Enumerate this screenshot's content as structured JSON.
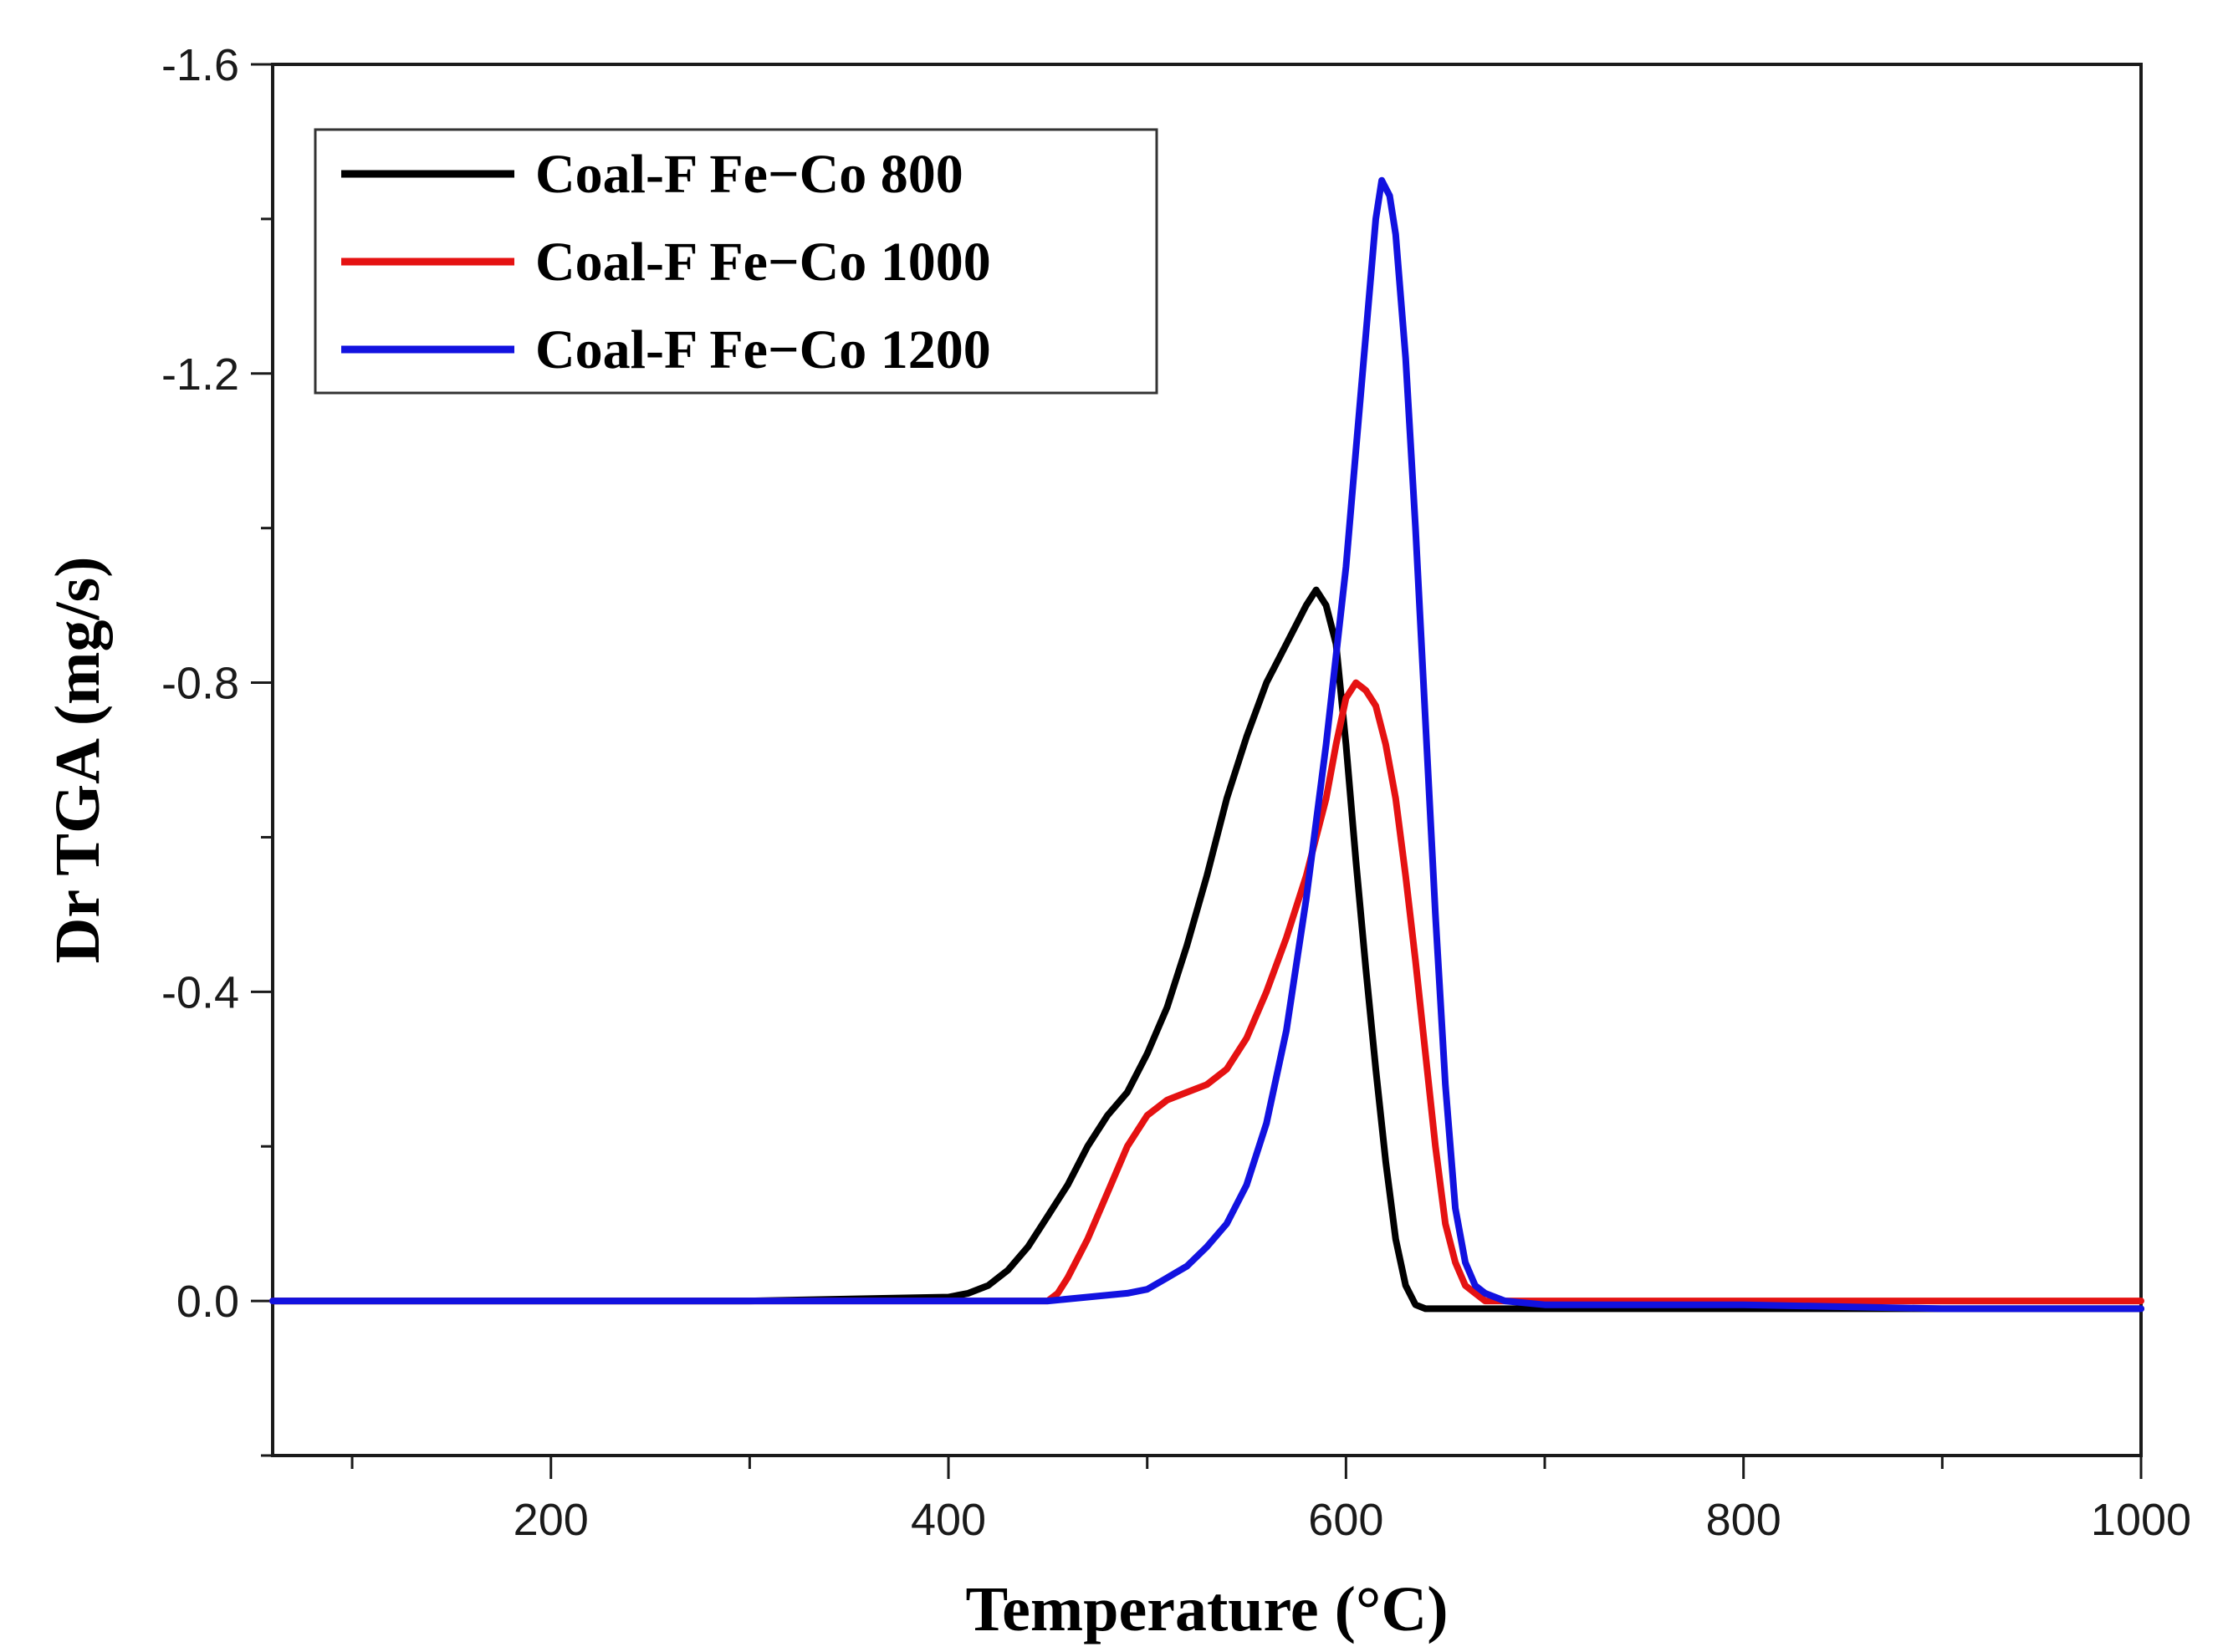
{
  "chart_data": {
    "type": "line",
    "title": "",
    "xlabel": "Temperature (°C)",
    "ylabel": "Dr TGA (mg/s)",
    "xlim": [
      60,
      1000
    ],
    "ylim": [
      0.2,
      -1.6
    ],
    "y_inverted": true,
    "xticks": [
      200,
      400,
      600,
      800,
      1000
    ],
    "xtick_labels": [
      "200",
      "400",
      "600",
      "800",
      "1000"
    ],
    "yticks": [
      0.0,
      -0.4,
      -0.8,
      -1.2,
      -1.6
    ],
    "ytick_labels": [
      "0.0",
      "-0.4",
      "-0.8",
      "-1.2",
      "-1.6"
    ],
    "grid": false,
    "legend_position": "top-left",
    "series": [
      {
        "name": "Coal-F Fe−Co 800",
        "color": "#000000",
        "points": [
          [
            60,
            0
          ],
          [
            100,
            0
          ],
          [
            200,
            0
          ],
          [
            300,
            0
          ],
          [
            400,
            -0.005
          ],
          [
            410,
            -0.01
          ],
          [
            420,
            -0.02
          ],
          [
            430,
            -0.04
          ],
          [
            440,
            -0.07
          ],
          [
            450,
            -0.11
          ],
          [
            460,
            -0.15
          ],
          [
            470,
            -0.2
          ],
          [
            480,
            -0.24
          ],
          [
            490,
            -0.27
          ],
          [
            500,
            -0.32
          ],
          [
            510,
            -0.38
          ],
          [
            520,
            -0.46
          ],
          [
            530,
            -0.55
          ],
          [
            540,
            -0.65
          ],
          [
            550,
            -0.73
          ],
          [
            560,
            -0.8
          ],
          [
            570,
            -0.85
          ],
          [
            580,
            -0.9
          ],
          [
            585,
            -0.92
          ],
          [
            590,
            -0.9
          ],
          [
            595,
            -0.85
          ],
          [
            600,
            -0.72
          ],
          [
            605,
            -0.57
          ],
          [
            610,
            -0.43
          ],
          [
            615,
            -0.3
          ],
          [
            620,
            -0.18
          ],
          [
            625,
            -0.08
          ],
          [
            630,
            -0.02
          ],
          [
            635,
            0.005
          ],
          [
            640,
            0.01
          ],
          [
            650,
            0.01
          ],
          [
            700,
            0.01
          ],
          [
            800,
            0.01
          ],
          [
            900,
            0.01
          ],
          [
            1000,
            0.01
          ]
        ]
      },
      {
        "name": "Coal-F Fe−Co 1000",
        "color": "#e51212",
        "points": [
          [
            60,
            0
          ],
          [
            100,
            0
          ],
          [
            200,
            0
          ],
          [
            300,
            0
          ],
          [
            400,
            0
          ],
          [
            450,
            0
          ],
          [
            455,
            -0.01
          ],
          [
            460,
            -0.03
          ],
          [
            470,
            -0.08
          ],
          [
            480,
            -0.14
          ],
          [
            490,
            -0.2
          ],
          [
            500,
            -0.24
          ],
          [
            510,
            -0.26
          ],
          [
            520,
            -0.27
          ],
          [
            530,
            -0.28
          ],
          [
            540,
            -0.3
          ],
          [
            550,
            -0.34
          ],
          [
            560,
            -0.4
          ],
          [
            570,
            -0.47
          ],
          [
            580,
            -0.55
          ],
          [
            590,
            -0.65
          ],
          [
            595,
            -0.72
          ],
          [
            600,
            -0.78
          ],
          [
            605,
            -0.8
          ],
          [
            610,
            -0.79
          ],
          [
            615,
            -0.77
          ],
          [
            620,
            -0.72
          ],
          [
            625,
            -0.65
          ],
          [
            630,
            -0.55
          ],
          [
            635,
            -0.44
          ],
          [
            640,
            -0.32
          ],
          [
            645,
            -0.2
          ],
          [
            650,
            -0.1
          ],
          [
            655,
            -0.05
          ],
          [
            660,
            -0.02
          ],
          [
            665,
            -0.01
          ],
          [
            670,
            0
          ],
          [
            700,
            0
          ],
          [
            800,
            0
          ],
          [
            900,
            0
          ],
          [
            1000,
            0
          ]
        ]
      },
      {
        "name": "Coal-F Fe−Co 1200",
        "color": "#1212e0",
        "points": [
          [
            60,
            0
          ],
          [
            100,
            0
          ],
          [
            200,
            0
          ],
          [
            300,
            0
          ],
          [
            400,
            0
          ],
          [
            450,
            0
          ],
          [
            470,
            -0.005
          ],
          [
            490,
            -0.01
          ],
          [
            500,
            -0.015
          ],
          [
            510,
            -0.03
          ],
          [
            520,
            -0.045
          ],
          [
            530,
            -0.07
          ],
          [
            540,
            -0.1
          ],
          [
            550,
            -0.15
          ],
          [
            560,
            -0.23
          ],
          [
            570,
            -0.35
          ],
          [
            580,
            -0.52
          ],
          [
            590,
            -0.72
          ],
          [
            600,
            -0.95
          ],
          [
            605,
            -1.1
          ],
          [
            610,
            -1.25
          ],
          [
            615,
            -1.4
          ],
          [
            618,
            -1.45
          ],
          [
            622,
            -1.43
          ],
          [
            625,
            -1.38
          ],
          [
            630,
            -1.22
          ],
          [
            635,
            -1.0
          ],
          [
            640,
            -0.75
          ],
          [
            645,
            -0.5
          ],
          [
            650,
            -0.28
          ],
          [
            655,
            -0.12
          ],
          [
            660,
            -0.05
          ],
          [
            665,
            -0.02
          ],
          [
            670,
            -0.01
          ],
          [
            680,
            0
          ],
          [
            700,
            0.005
          ],
          [
            800,
            0.005
          ],
          [
            900,
            0.01
          ],
          [
            1000,
            0.01
          ]
        ]
      }
    ]
  }
}
